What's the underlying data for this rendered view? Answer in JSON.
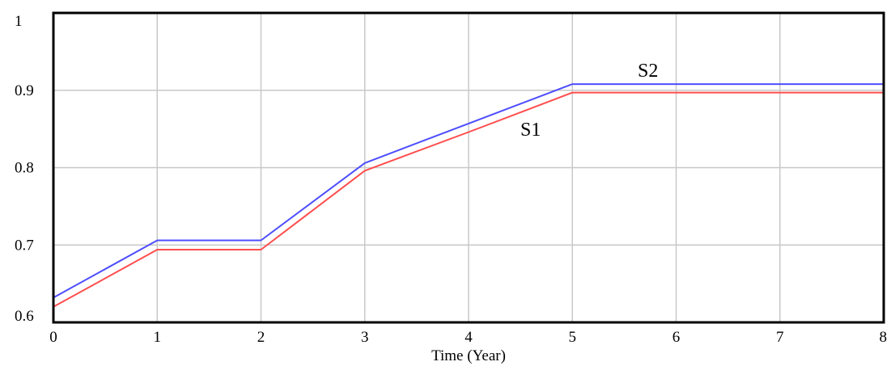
{
  "chart_data": {
    "type": "line",
    "title": "",
    "xlabel": "Time (Year)",
    "ylabel": "",
    "x": [
      0,
      1,
      2,
      3,
      4,
      5,
      6,
      7,
      8
    ],
    "xlim": [
      0,
      8
    ],
    "ylim": [
      0.6,
      1
    ],
    "xticks": [
      "0",
      "1",
      "2",
      "3",
      "4",
      "5",
      "6",
      "7",
      "8"
    ],
    "yticks": [
      "0.6",
      "0.7",
      "0.8",
      "0.9",
      "1"
    ],
    "grid": true,
    "series": [
      {
        "name": "S2",
        "color": "#4d4dff",
        "values": [
          0.632,
          0.706,
          0.706,
          0.806,
          0.857,
          0.908,
          0.908,
          0.908,
          0.908
        ]
      },
      {
        "name": "S1",
        "color": "#ff4d4d",
        "values": [
          0.62,
          0.694,
          0.694,
          0.796,
          0.846,
          0.897,
          0.897,
          0.897,
          0.897
        ]
      }
    ]
  }
}
